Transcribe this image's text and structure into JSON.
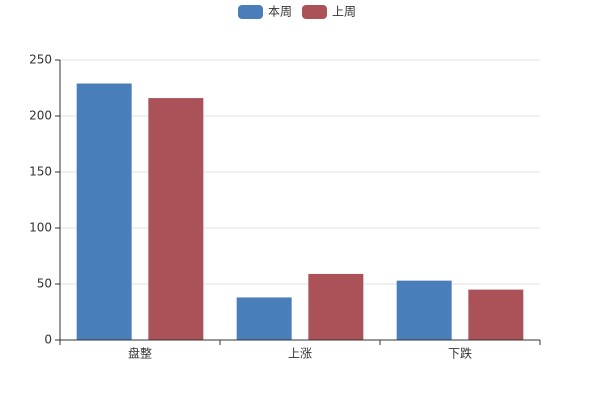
{
  "chart_data": {
    "type": "bar",
    "categories": [
      "盘整",
      "上涨",
      "下跌"
    ],
    "series": [
      {
        "name": "本周",
        "color": "#4a7ebb",
        "values": [
          229,
          38,
          53
        ]
      },
      {
        "name": "上周",
        "color": "#aa5257",
        "values": [
          216,
          59,
          45
        ]
      }
    ],
    "ylim": [
      0,
      250
    ],
    "yticks": [
      0,
      50,
      100,
      150,
      200,
      250
    ],
    "grid": true,
    "legend": "top"
  }
}
